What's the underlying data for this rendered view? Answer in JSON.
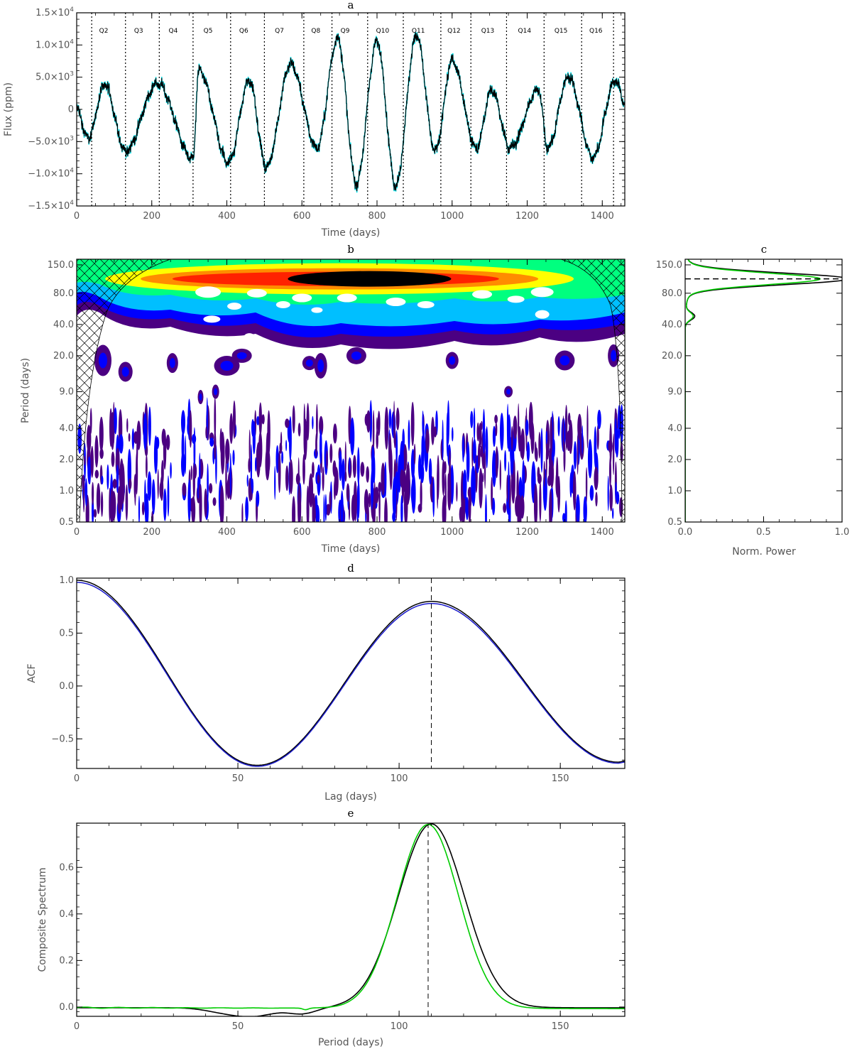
{
  "chart_data": [
    {
      "panel": "a",
      "type": "line",
      "title": "a",
      "xlabel": "Time (days)",
      "ylabel": "Flux (ppm)",
      "xlim": [
        0,
        1460
      ],
      "ylim": [
        -15000,
        15000
      ],
      "xticks": [
        "0",
        "200",
        "400",
        "600",
        "800",
        "1000",
        "1200",
        "1400"
      ],
      "yticks": [
        {
          "value": -15000,
          "mant": "−1.5×10",
          "exp": "4"
        },
        {
          "value": -10000,
          "mant": "−1.0×10",
          "exp": "4"
        },
        {
          "value": -5000,
          "mant": "−5.0×10",
          "exp": "3"
        },
        {
          "value": 0,
          "mant": "0",
          "exp": ""
        },
        {
          "value": 5000,
          "mant": "5.0×10",
          "exp": "3"
        },
        {
          "value": 10000,
          "mant": "1.0×10",
          "exp": "4"
        },
        {
          "value": 15000,
          "mant": "1.5×10",
          "exp": "4"
        }
      ],
      "quarter_boundaries": [
        40,
        130,
        220,
        310,
        410,
        500,
        605,
        680,
        775,
        870,
        970,
        1050,
        1145,
        1245,
        1345,
        1430
      ],
      "quarter_labels": [
        {
          "label": "Q2",
          "x": 72
        },
        {
          "label": "Q3",
          "x": 165
        },
        {
          "label": "Q4",
          "x": 257
        },
        {
          "label": "Q5",
          "x": 350
        },
        {
          "label": "Q6",
          "x": 445
        },
        {
          "label": "Q7",
          "x": 540
        },
        {
          "label": "Q8",
          "x": 637
        },
        {
          "label": "Q9",
          "x": 715
        },
        {
          "label": "Q10",
          "x": 815
        },
        {
          "label": "Q11",
          "x": 910
        },
        {
          "label": "Q12",
          "x": 1005
        },
        {
          "label": "Q13",
          "x": 1095
        },
        {
          "label": "Q14",
          "x": 1193
        },
        {
          "label": "Q15",
          "x": 1290
        },
        {
          "label": "Q16",
          "x": 1383
        }
      ],
      "extrema": [
        [
          0,
          0
        ],
        [
          30,
          -4500
        ],
        [
          75,
          3800
        ],
        [
          130,
          -6500
        ],
        [
          215,
          4000
        ],
        [
          310,
          -7800
        ],
        [
          325,
          6000
        ],
        [
          405,
          -8200
        ],
        [
          460,
          4500
        ],
        [
          505,
          -9000
        ],
        [
          570,
          7000
        ],
        [
          640,
          -6000
        ],
        [
          695,
          11000
        ],
        [
          745,
          -11500
        ],
        [
          800,
          10500
        ],
        [
          850,
          -11800
        ],
        [
          905,
          11500
        ],
        [
          955,
          -6500
        ],
        [
          1000,
          7500
        ],
        [
          1065,
          -6000
        ],
        [
          1105,
          3000
        ],
        [
          1155,
          -6000
        ],
        [
          1230,
          3000
        ],
        [
          1255,
          -6000
        ],
        [
          1310,
          5000
        ],
        [
          1375,
          -7500
        ],
        [
          1435,
          4500
        ],
        [
          1460,
          1000
        ]
      ],
      "series": [
        {
          "name": "",
          "color": "#00e5ee"
        },
        {
          "name": "",
          "color": "#000000"
        }
      ]
    },
    {
      "panel": "b",
      "type": "heatmap",
      "title": "b",
      "xlabel": "Time (days)",
      "ylabel": "Period (days)",
      "xlim": [
        0,
        1460
      ],
      "ylim": [
        0.5,
        170
      ],
      "xticks": [
        "0",
        "200",
        "400",
        "600",
        "800",
        "1000",
        "1200",
        "1400"
      ],
      "yticks": [
        "0.5",
        "1.0",
        "2.0",
        "4.0",
        "9.0",
        "20.0",
        "40.0",
        "80.0",
        "150.0"
      ],
      "peak_period": 110,
      "levels": [
        "#4b0082",
        "#0000ff",
        "#00bfff",
        "#00ff7f",
        "#ffff00",
        "#ff8c00",
        "#ff2200",
        "#000000"
      ]
    },
    {
      "panel": "c",
      "type": "line",
      "title": "c",
      "xlabel": "Norm. Power",
      "ylabel": "",
      "xlim": [
        0,
        1
      ],
      "xticks": [
        "0.0",
        "0.5",
        "1.0"
      ],
      "yticks": [
        "0.5",
        "1.0",
        "2.0",
        "4.0",
        "9.0",
        "20.0",
        "40.0",
        "80.0",
        "150.0"
      ],
      "peak_period": 110,
      "series": [
        {
          "name": "",
          "color": "#000000",
          "peak": 1.0
        },
        {
          "name": "",
          "color": "#00cc00",
          "peak": 0.82
        }
      ]
    },
    {
      "panel": "d",
      "type": "line",
      "title": "d",
      "xlabel": "Lag (days)",
      "ylabel": "ACF",
      "xlim": [
        0,
        170
      ],
      "ylim": [
        -0.78,
        1.02
      ],
      "xticks": [
        "0",
        "50",
        "100",
        "150"
      ],
      "yticks": [
        "−0.5",
        "0.0",
        "0.5",
        "1.0"
      ],
      "marker_x": 110,
      "series": [
        {
          "name": "",
          "color": "#000000",
          "x": [
            0,
            56,
            110,
            168,
            170
          ],
          "y": [
            1.0,
            -0.75,
            0.8,
            -0.72,
            -0.71
          ]
        },
        {
          "name": "",
          "color": "#1a1acc",
          "x": [
            0,
            56,
            110,
            168,
            170
          ],
          "y": [
            0.98,
            -0.76,
            0.78,
            -0.73,
            -0.72
          ]
        }
      ]
    },
    {
      "panel": "e",
      "type": "line",
      "title": "e",
      "xlabel": "Period (days)",
      "ylabel": "Composite Spectrum",
      "xlim": [
        0,
        170
      ],
      "ylim": [
        -0.04,
        0.79
      ],
      "xticks": [
        "0",
        "50",
        "100",
        "150"
      ],
      "yticks": [
        "0.0",
        "0.2",
        "0.4",
        "0.6"
      ],
      "marker_x": 109,
      "series": [
        {
          "name": "",
          "color": "#000000",
          "peak_x": 110,
          "peak_y": 0.79
        },
        {
          "name": "",
          "color": "#00cc00",
          "peak_x": 109,
          "peak_y": 0.79
        }
      ]
    }
  ]
}
